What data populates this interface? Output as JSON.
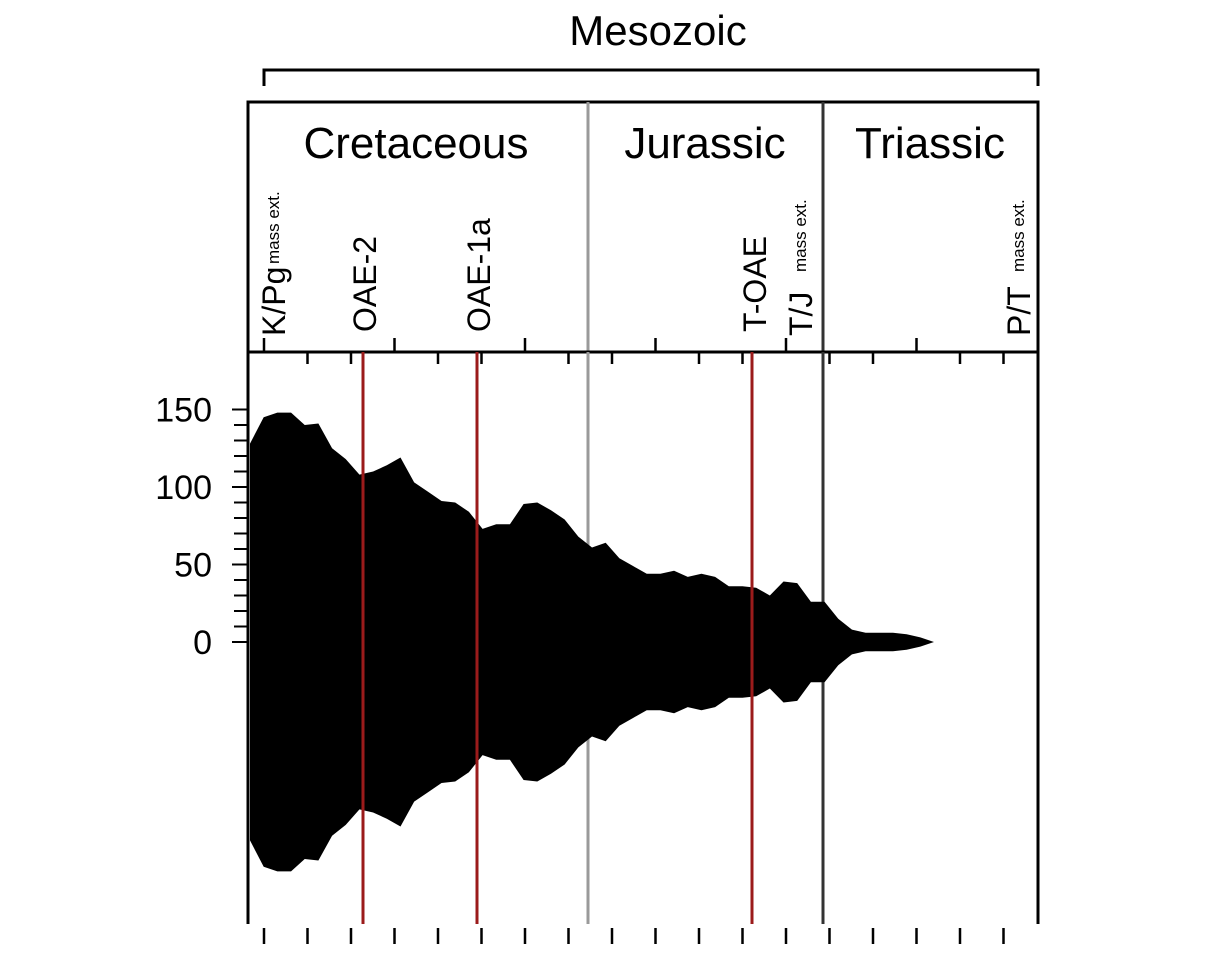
{
  "chart_data": {
    "type": "area",
    "era_label": "Mesozoic",
    "periods": [
      "Cretaceous",
      "Jurassic",
      "Triassic"
    ],
    "events": [
      {
        "label": "K/Pg",
        "sub": "mass ext.",
        "line": false
      },
      {
        "label": "OAE-2",
        "sub": "",
        "line": true
      },
      {
        "label": "OAE-1a",
        "sub": "",
        "line": true
      },
      {
        "label": "T-OAE",
        "sub": "",
        "line": true
      },
      {
        "label": "T/J",
        "sub": "mass ext.",
        "line": false
      },
      {
        "label": "P/T",
        "sub": "mass ext.",
        "line": false
      }
    ],
    "y_ticks": [
      "150",
      "100",
      "50",
      "0"
    ],
    "ylim": [
      0,
      150
    ],
    "grid": false,
    "colors": {
      "fill": "#000000",
      "event_line": "#9b1b1b",
      "boundary_cretaceous_jurassic": "#9a9a9a",
      "boundary_jurassic_triassic": "#333333"
    },
    "series": [
      {
        "values": [
          128,
          145,
          148,
          148,
          140,
          141,
          125,
          118,
          108,
          110,
          114,
          119,
          103,
          97,
          91,
          90,
          84,
          73,
          76,
          76,
          89,
          90,
          85,
          79,
          68,
          61,
          64,
          54,
          49,
          44,
          44,
          46,
          42,
          44,
          42,
          36,
          36,
          35,
          30,
          39,
          38,
          26,
          26,
          15,
          8,
          6,
          6,
          6,
          5,
          3,
          0
        ]
      }
    ]
  }
}
